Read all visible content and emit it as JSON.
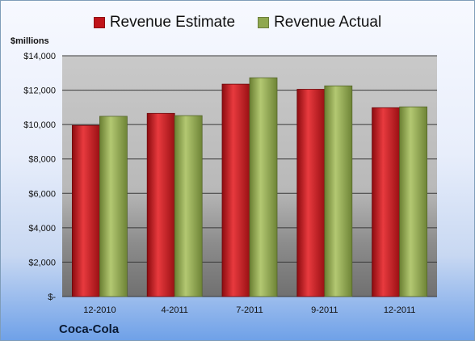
{
  "chart_data": {
    "type": "bar",
    "title": "",
    "ylabel": "$millions",
    "categories": [
      "12-2010",
      "4-2011",
      "7-2011",
      "9-2011",
      "12-2011"
    ],
    "series": [
      {
        "name": "Revenue Estimate",
        "color": "#c0141a",
        "values": [
          9950,
          10650,
          12350,
          12050,
          10980
        ]
      },
      {
        "name": "Revenue Actual",
        "color": "#8fa84f",
        "values": [
          10480,
          10520,
          12720,
          12250,
          11030
        ]
      }
    ],
    "ylim": [
      0,
      14000
    ],
    "yticks": [
      0,
      2000,
      4000,
      6000,
      8000,
      10000,
      12000,
      14000
    ],
    "ytick_labels": [
      "$-",
      "$2,000",
      "$4,000",
      "$6,000",
      "$8,000",
      "$10,000",
      "$12,000",
      "$14,000"
    ],
    "grid": true,
    "legend_position": "top",
    "footer": "Coca-Cola"
  }
}
